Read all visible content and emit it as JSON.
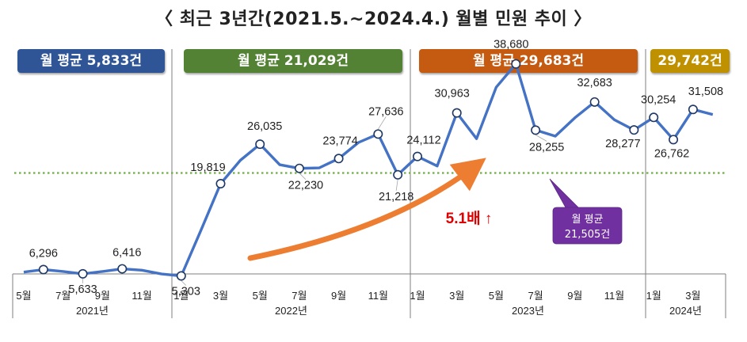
{
  "title": "〈 최근 3년간(2021.5.~2024.4.) 월별 민원 추이 〉",
  "badges": [
    {
      "text": "월 평균 5,833건",
      "color": "#2f5597"
    },
    {
      "text": "월 평균 21,029건",
      "color": "#548235"
    },
    {
      "text": "월 평균 29,683건",
      "color": "#c55a11"
    },
    {
      "text": "29,742건",
      "color": "#bf9000"
    }
  ],
  "growth_label": "5.1배 ↑",
  "avg_callout": {
    "line1": "월 평균",
    "line2": "21,505건",
    "color": "#7030a0"
  },
  "colors": {
    "line": "#4472c4",
    "avg_line": "#70ad47",
    "arrow": "#ed7d31",
    "growth": "#e00000"
  },
  "chart_data": {
    "type": "line",
    "title": "〈 최근 3년간(2021.5.~2024.4.) 월별 민원 추이 〉",
    "x": [
      "2021-05",
      "2021-06",
      "2021-07",
      "2021-08",
      "2021-09",
      "2021-10",
      "2021-11",
      "2021-12",
      "2022-01",
      "2022-02",
      "2022-03",
      "2022-04",
      "2022-05",
      "2022-06",
      "2022-07",
      "2022-08",
      "2022-09",
      "2022-10",
      "2022-11",
      "2022-12",
      "2023-01",
      "2023-02",
      "2023-03",
      "2023-04",
      "2023-05",
      "2023-06",
      "2023-07",
      "2023-08",
      "2023-09",
      "2023-10",
      "2023-11",
      "2023-12",
      "2024-01",
      "2024-02",
      "2024-03",
      "2024-04"
    ],
    "series": [
      {
        "values": [
          5900,
          6296,
          6000,
          5633,
          6000,
          6416,
          6200,
          5600,
          5303,
          12500,
          19819,
          23500,
          26035,
          22800,
          22230,
          22300,
          23774,
          26300,
          27636,
          21218,
          24112,
          22600,
          30963,
          26900,
          35000,
          38680,
          28255,
          27300,
          30200,
          32683,
          29900,
          28277,
          30254,
          26762,
          31508,
          30700
        ]
      }
    ],
    "data_labels": [
      {
        "x": "2021-06",
        "text": "6,296"
      },
      {
        "x": "2021-08",
        "text": "5,633"
      },
      {
        "x": "2021-10",
        "text": "6,416"
      },
      {
        "x": "2022-01",
        "text": "5,303"
      },
      {
        "x": "2022-03",
        "text": "19,819"
      },
      {
        "x": "2022-05",
        "text": "26,035"
      },
      {
        "x": "2022-07",
        "text": "22,230"
      },
      {
        "x": "2022-09",
        "text": "23,774"
      },
      {
        "x": "2022-11",
        "text": "27,636"
      },
      {
        "x": "2022-12",
        "text": "21,218"
      },
      {
        "x": "2023-01",
        "text": "24,112"
      },
      {
        "x": "2023-03",
        "text": "30,963"
      },
      {
        "x": "2023-06",
        "text": "38,680"
      },
      {
        "x": "2023-07",
        "text": "28,255"
      },
      {
        "x": "2023-10",
        "text": "32,683"
      },
      {
        "x": "2023-12",
        "text": "28,277"
      },
      {
        "x": "2024-01",
        "text": "30,254"
      },
      {
        "x": "2024-02",
        "text": "26,762"
      },
      {
        "x": "2024-03",
        "text": "31,508"
      }
    ],
    "average_line": 21505,
    "xtick_labels": [
      "5월",
      "7월",
      "9월",
      "11월",
      "1월",
      "3월",
      "5월",
      "7월",
      "9월",
      "11월",
      "1월",
      "3월",
      "5월",
      "7월",
      "9월",
      "11월",
      "1월",
      "3월"
    ],
    "year_labels": [
      "2021년",
      "2022년",
      "2023년",
      "2024년"
    ],
    "ylim": [
      2000,
      45000
    ],
    "grid": false
  }
}
